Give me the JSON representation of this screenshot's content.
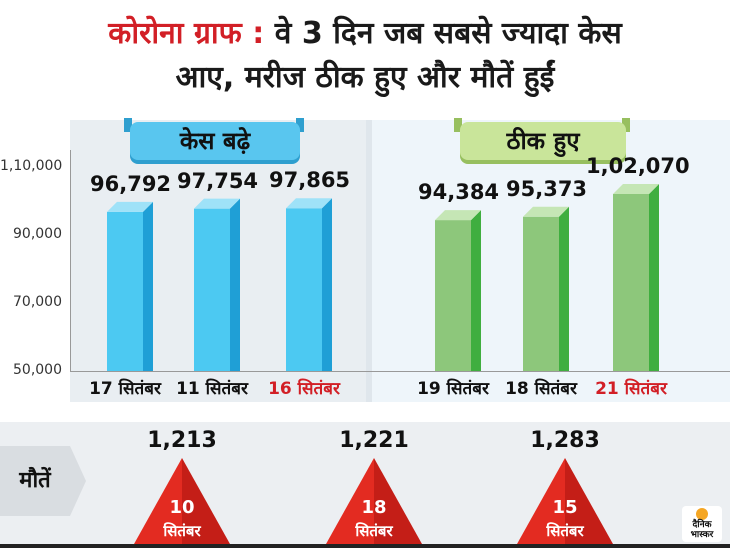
{
  "title": {
    "prefix": "कोरोना ग्राफ :",
    "line1_rest": "वे 3 दिन जब सबसे ज्यादा केस",
    "line2": "आए, मरीज ठीक हुए और मौतें हुईं"
  },
  "colors": {
    "title_red": "#d21f26",
    "cases_bar": "#4cc9f2",
    "recovered_bar": "#8dc77b",
    "deaths_triangle": "#e32b21"
  },
  "panels": {
    "cases_label": "केस बढ़े",
    "recovered_label": "ठीक हुए"
  },
  "chart_data": {
    "type": "bar",
    "ylim": [
      50000,
      115000
    ],
    "yticks": [
      "1,10,000",
      "90,000",
      "70,000",
      "50,000"
    ],
    "ytick_values": [
      110000,
      90000,
      70000,
      50000
    ],
    "series": [
      {
        "name": "केस बढ़े",
        "categories": [
          "17 सितंबर",
          "11 सितंबर",
          "16 सितंबर"
        ],
        "values": [
          96792,
          97754,
          97865
        ],
        "labels": [
          "96,792",
          "97,754",
          "97,865"
        ],
        "highlight": [
          false,
          false,
          true
        ]
      },
      {
        "name": "ठीक हुए",
        "categories": [
          "19 सितंबर",
          "18 सितंबर",
          "21 सितंबर"
        ],
        "values": [
          94384,
          95373,
          102070
        ],
        "labels": [
          "94,384",
          "95,373",
          "1,02,070"
        ],
        "highlight": [
          false,
          false,
          true
        ]
      }
    ]
  },
  "deaths": {
    "label": "मौतें",
    "items": [
      {
        "value": "1,213",
        "day": "10",
        "month": "सितंबर"
      },
      {
        "value": "1,221",
        "day": "18",
        "month": "सितंबर"
      },
      {
        "value": "1,283",
        "day": "15",
        "month": "सितंबर"
      }
    ]
  },
  "logo": {
    "line1": "दैनिक",
    "line2": "भास्कर"
  }
}
